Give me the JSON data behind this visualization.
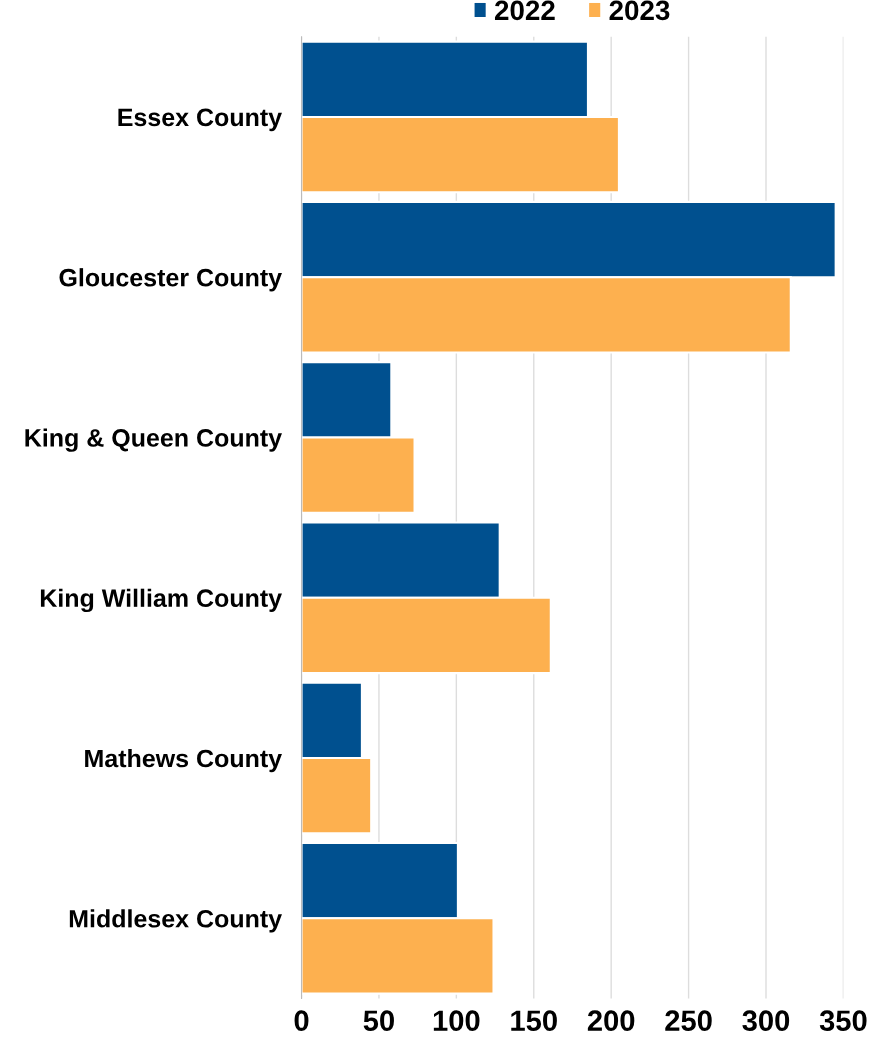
{
  "chart_data": {
    "type": "bar",
    "orientation": "horizontal",
    "categories": [
      "Essex County",
      "Gloucester County",
      "King & Queen County",
      "King William County",
      "Mathews County",
      "Middlesex County"
    ],
    "series": [
      {
        "name": "2022",
        "color": "#00508f",
        "values": [
          185,
          345,
          58,
          128,
          39,
          101
        ]
      },
      {
        "name": "2023",
        "color": "#fdb04f",
        "values": [
          205,
          316,
          73,
          161,
          45,
          124
        ]
      }
    ],
    "xlim": [
      0,
      350
    ],
    "xticks": [
      0,
      50,
      100,
      150,
      200,
      250,
      300,
      350
    ],
    "grid": "x",
    "legend": "top"
  }
}
